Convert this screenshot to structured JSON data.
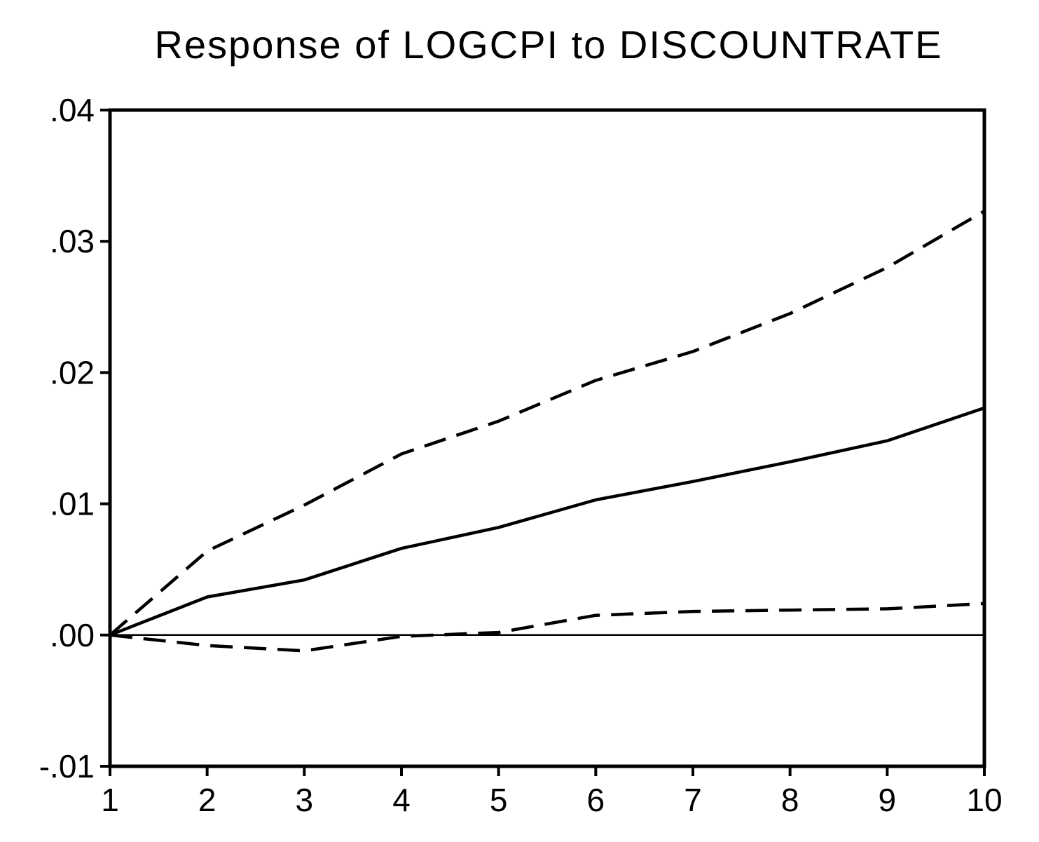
{
  "chart_data": {
    "type": "line",
    "title": "Response of LOGCPI to DISCOUNTRATE",
    "xlabel": "",
    "ylabel": "",
    "x": [
      1,
      2,
      3,
      4,
      5,
      6,
      7,
      8,
      9,
      10
    ],
    "xlim": [
      1,
      10
    ],
    "ylim": [
      -0.01,
      0.04
    ],
    "x_ticks": [
      "1",
      "2",
      "3",
      "4",
      "5",
      "6",
      "7",
      "8",
      "9",
      "10"
    ],
    "y_ticks": [
      {
        "value": -0.01,
        "label": "-.01"
      },
      {
        "value": 0.0,
        "label": ".00"
      },
      {
        "value": 0.01,
        "label": ".01"
      },
      {
        "value": 0.02,
        "label": ".02"
      },
      {
        "value": 0.03,
        "label": ".03"
      },
      {
        "value": 0.04,
        "label": ".04"
      }
    ],
    "grid": false,
    "zero_line": true,
    "series": [
      {
        "style": "solid",
        "values": [
          0.0,
          0.0029,
          0.0042,
          0.0066,
          0.0082,
          0.0103,
          0.0117,
          0.0132,
          0.0148,
          0.0173
        ]
      },
      {
        "style": "dashed",
        "values": [
          0.0,
          0.0064,
          0.0099,
          0.0138,
          0.0163,
          0.0194,
          0.0216,
          0.0245,
          0.028,
          0.0323
        ]
      },
      {
        "style": "dashed",
        "values": [
          0.0,
          -0.0008,
          -0.0012,
          -0.0001,
          0.0002,
          0.0015,
          0.0018,
          0.0019,
          0.002,
          0.0024
        ]
      }
    ],
    "colors": {
      "line": "#000000",
      "background": "#ffffff"
    }
  }
}
